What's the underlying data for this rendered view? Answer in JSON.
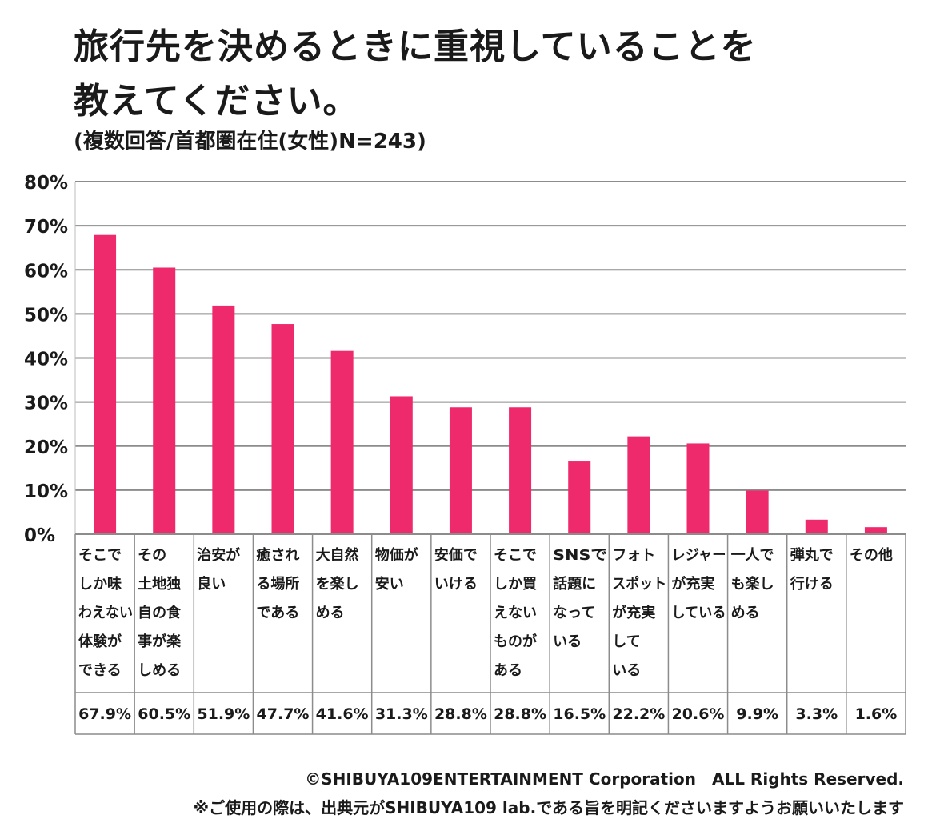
{
  "title_line1": "旅行先を決めるときに重視していることを",
  "title_line2": "教えてください。",
  "subtitle": "(複数回答/首都圏在住(女性)N=243)",
  "footer": {
    "copyright": "©SHIBUYA109ENTERTAINMENT Corporation　ALL Rights Reserved.",
    "notice": "※ご使用の際は、出典元がSHIBUYA109 lab.である旨を明記くださいますようお願いいたします"
  },
  "chart_data": {
    "type": "bar",
    "title": "旅行先を決めるときに重視していることを教えてください。",
    "subtitle": "(複数回答/首都圏在住(女性)N=243)",
    "xlabel": "",
    "ylabel": "",
    "ylim": [
      0,
      80
    ],
    "y_ticks": [
      "0%",
      "10%",
      "20%",
      "30%",
      "40%",
      "50%",
      "60%",
      "70%",
      "80%"
    ],
    "grid": true,
    "bar_color": "#ee2a6c",
    "categories": [
      [
        "そこで",
        "しか味",
        "わえない",
        "体験が",
        "できる"
      ],
      [
        "その",
        "土地独",
        "自の食",
        "事が楽",
        "しめる"
      ],
      [
        "治安が",
        "良い"
      ],
      [
        "癒され",
        "る場所",
        "である"
      ],
      [
        "大自然",
        "を楽し",
        "める"
      ],
      [
        "物価が",
        "安い"
      ],
      [
        "安価で",
        "いける"
      ],
      [
        "そこで",
        "しか買",
        "えない",
        "ものが",
        "ある"
      ],
      [
        "SNSで",
        "話題に",
        "なって",
        "いる"
      ],
      [
        "フォト",
        "スポット",
        "が充実",
        "して",
        "いる"
      ],
      [
        "レジャー",
        "が充実",
        "している"
      ],
      [
        "一人で",
        "も楽し",
        "める"
      ],
      [
        "弾丸で",
        "行ける"
      ],
      [
        "その他"
      ]
    ],
    "values": [
      67.9,
      60.5,
      51.9,
      47.7,
      41.6,
      31.3,
      28.8,
      28.8,
      16.5,
      22.2,
      20.6,
      9.9,
      3.3,
      1.6
    ],
    "value_labels": [
      "67.9%",
      "60.5%",
      "51.9%",
      "47.7%",
      "41.6%",
      "31.3%",
      "28.8%",
      "28.8%",
      "16.5%",
      "22.2%",
      "20.6%",
      "9.9%",
      "3.3%",
      "1.6%"
    ]
  }
}
